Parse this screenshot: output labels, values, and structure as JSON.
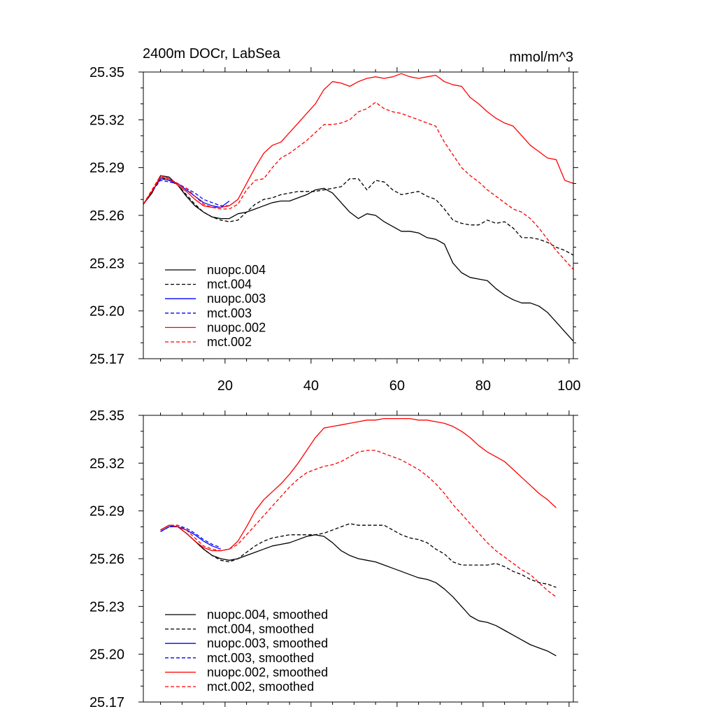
{
  "chart_data": [
    {
      "type": "line",
      "title": "2400m DOCr, LabSea",
      "units": "mmol/m^3",
      "xlim": [
        1,
        101
      ],
      "ylim": [
        25.17,
        25.35
      ],
      "xticks": [
        20,
        40,
        60,
        80,
        100
      ],
      "yticks": [
        "25.17",
        "25.20",
        "25.23",
        "25.26",
        "25.29",
        "25.32",
        "25.35"
      ],
      "legend_position": "lower-left",
      "series": [
        {
          "name": "nuopc.004",
          "color": "#000000",
          "dash": "solid",
          "x": [
            1,
            3,
            5,
            7,
            9,
            11,
            13,
            15,
            17,
            19,
            21,
            23,
            25,
            27,
            29,
            31,
            33,
            35,
            37,
            39,
            41,
            43,
            45,
            47,
            49,
            51,
            53,
            55,
            57,
            59,
            61,
            63,
            65,
            67,
            69,
            71,
            73,
            75,
            77,
            79,
            81,
            83,
            85,
            87,
            89,
            91,
            93,
            95,
            97,
            99,
            101
          ],
          "y": [
            25.267,
            25.274,
            25.285,
            25.284,
            25.279,
            25.272,
            25.266,
            25.262,
            25.259,
            25.258,
            25.258,
            25.261,
            25.262,
            25.264,
            25.266,
            25.268,
            25.269,
            25.269,
            25.271,
            25.273,
            25.276,
            25.277,
            25.274,
            25.268,
            25.262,
            25.258,
            25.261,
            25.26,
            25.256,
            25.253,
            25.25,
            25.25,
            25.249,
            25.246,
            25.245,
            25.242,
            25.23,
            25.224,
            25.221,
            25.22,
            25.219,
            25.214,
            25.21,
            25.207,
            25.205,
            25.205,
            25.203,
            25.199,
            25.193,
            25.187,
            25.181
          ]
        },
        {
          "name": "mct.004",
          "color": "#000000",
          "dash": "dashed",
          "x": [
            1,
            3,
            5,
            7,
            9,
            11,
            13,
            15,
            17,
            19,
            21,
            23,
            25,
            27,
            29,
            31,
            33,
            35,
            37,
            39,
            41,
            43,
            45,
            47,
            49,
            51,
            53,
            55,
            57,
            59,
            61,
            63,
            65,
            67,
            69,
            71,
            73,
            75,
            77,
            79,
            81,
            83,
            85,
            87,
            89,
            91,
            93,
            95,
            97,
            99,
            101
          ],
          "y": [
            25.267,
            25.274,
            25.284,
            25.282,
            25.279,
            25.273,
            25.267,
            25.262,
            25.259,
            25.257,
            25.256,
            25.257,
            25.262,
            25.267,
            25.27,
            25.271,
            25.273,
            25.274,
            25.275,
            25.275,
            25.275,
            25.276,
            25.277,
            25.278,
            25.283,
            25.283,
            25.276,
            25.282,
            25.281,
            25.276,
            25.273,
            25.274,
            25.275,
            25.272,
            25.27,
            25.264,
            25.257,
            25.255,
            25.254,
            25.254,
            25.257,
            25.255,
            25.256,
            25.252,
            25.246,
            25.246,
            25.245,
            25.243,
            25.24,
            25.238,
            25.235
          ]
        },
        {
          "name": "nuopc.003",
          "color": "#0000ff",
          "dash": "solid",
          "x": [
            1,
            3,
            5,
            7,
            9,
            11,
            13,
            15,
            17,
            19,
            21
          ],
          "y": [
            25.267,
            25.275,
            25.283,
            25.282,
            25.28,
            25.276,
            25.272,
            25.268,
            25.266,
            25.265,
            25.269
          ]
        },
        {
          "name": "mct.003",
          "color": "#0000ff",
          "dash": "dashed",
          "x": [
            1,
            3,
            5,
            7,
            9,
            11,
            13,
            15,
            17,
            19,
            21
          ],
          "y": [
            25.267,
            25.275,
            25.282,
            25.281,
            25.28,
            25.277,
            25.274,
            25.27,
            25.268,
            25.266,
            25.266
          ]
        },
        {
          "name": "nuopc.002",
          "color": "#ff0000",
          "dash": "solid",
          "x": [
            1,
            3,
            5,
            7,
            9,
            11,
            13,
            15,
            17,
            19,
            21,
            23,
            25,
            27,
            29,
            31,
            33,
            35,
            37,
            39,
            41,
            43,
            45,
            47,
            49,
            51,
            53,
            55,
            57,
            59,
            61,
            63,
            65,
            67,
            69,
            71,
            73,
            75,
            77,
            79,
            81,
            83,
            85,
            87,
            89,
            91,
            93,
            95,
            97,
            99,
            101
          ],
          "y": [
            25.267,
            25.275,
            25.284,
            25.283,
            25.279,
            25.275,
            25.27,
            25.266,
            25.265,
            25.265,
            25.266,
            25.27,
            25.28,
            25.29,
            25.299,
            25.304,
            25.306,
            25.312,
            25.318,
            25.324,
            25.33,
            25.339,
            25.344,
            25.343,
            25.341,
            25.344,
            25.346,
            25.347,
            25.346,
            25.347,
            25.349,
            25.347,
            25.346,
            25.347,
            25.348,
            25.344,
            25.342,
            25.341,
            25.334,
            25.33,
            25.325,
            25.321,
            25.318,
            25.316,
            25.31,
            25.304,
            25.3,
            25.296,
            25.295,
            25.282,
            25.28
          ]
        },
        {
          "name": "mct.002",
          "color": "#ff0000",
          "dash": "dashed",
          "x": [
            1,
            3,
            5,
            7,
            9,
            11,
            13,
            15,
            17,
            19,
            21,
            23,
            25,
            27,
            29,
            31,
            33,
            35,
            37,
            39,
            41,
            43,
            45,
            47,
            49,
            51,
            53,
            55,
            57,
            59,
            61,
            63,
            65,
            67,
            69,
            71,
            73,
            75,
            77,
            79,
            81,
            83,
            85,
            87,
            89,
            91,
            93,
            95,
            97,
            99,
            101
          ],
          "y": [
            25.267,
            25.276,
            25.285,
            25.283,
            25.28,
            25.277,
            25.272,
            25.267,
            25.265,
            25.264,
            25.264,
            25.267,
            25.276,
            25.282,
            25.283,
            25.29,
            25.296,
            25.299,
            25.303,
            25.307,
            25.312,
            25.317,
            25.317,
            25.318,
            25.32,
            25.325,
            25.327,
            25.331,
            25.327,
            25.325,
            25.324,
            25.322,
            25.32,
            25.318,
            25.316,
            25.306,
            25.298,
            25.29,
            25.285,
            25.281,
            25.276,
            25.272,
            25.268,
            25.264,
            25.262,
            25.258,
            25.252,
            25.245,
            25.238,
            25.232,
            25.226
          ]
        }
      ]
    },
    {
      "type": "line",
      "xlim": [
        1,
        101
      ],
      "ylim": [
        25.17,
        25.35
      ],
      "yticks": [
        "25.17",
        "25.20",
        "25.23",
        "25.26",
        "25.29",
        "25.32",
        "25.35"
      ],
      "legend_position": "lower-left",
      "series": [
        {
          "name": "nuopc.004, smoothed",
          "color": "#000000",
          "dash": "solid",
          "x": [
            5,
            7,
            9,
            11,
            13,
            15,
            17,
            19,
            21,
            23,
            25,
            27,
            29,
            31,
            33,
            35,
            37,
            39,
            41,
            43,
            45,
            47,
            49,
            51,
            53,
            55,
            57,
            59,
            61,
            63,
            65,
            67,
            69,
            71,
            73,
            75,
            77,
            79,
            81,
            83,
            85,
            87,
            89,
            91,
            93,
            95,
            97
          ],
          "y": [
            25.278,
            25.281,
            25.28,
            25.276,
            25.271,
            25.266,
            25.262,
            25.26,
            25.259,
            25.26,
            25.262,
            25.264,
            25.266,
            25.268,
            25.269,
            25.27,
            25.272,
            25.274,
            25.275,
            25.274,
            25.27,
            25.265,
            25.262,
            25.26,
            25.259,
            25.258,
            25.256,
            25.254,
            25.252,
            25.25,
            25.248,
            25.247,
            25.245,
            25.241,
            25.236,
            25.23,
            25.224,
            25.221,
            25.22,
            25.218,
            25.215,
            25.212,
            25.209,
            25.206,
            25.204,
            25.202,
            25.199
          ]
        },
        {
          "name": "mct.004, smoothed",
          "color": "#000000",
          "dash": "dashed",
          "x": [
            5,
            7,
            9,
            11,
            13,
            15,
            17,
            19,
            21,
            23,
            25,
            27,
            29,
            31,
            33,
            35,
            37,
            39,
            41,
            43,
            45,
            47,
            49,
            51,
            53,
            55,
            57,
            59,
            61,
            63,
            65,
            67,
            69,
            71,
            73,
            75,
            77,
            79,
            81,
            83,
            85,
            87,
            89,
            91,
            93,
            95,
            97
          ],
          "y": [
            25.278,
            25.281,
            25.28,
            25.276,
            25.271,
            25.266,
            25.262,
            25.259,
            25.258,
            25.26,
            25.264,
            25.268,
            25.271,
            25.273,
            25.274,
            25.275,
            25.275,
            25.275,
            25.275,
            25.276,
            25.278,
            25.28,
            25.282,
            25.281,
            25.281,
            25.281,
            25.281,
            25.278,
            25.275,
            25.273,
            25.272,
            25.27,
            25.266,
            25.263,
            25.258,
            25.256,
            25.256,
            25.256,
            25.256,
            25.257,
            25.255,
            25.252,
            25.25,
            25.247,
            25.245,
            25.244,
            25.242
          ]
        },
        {
          "name": "nuopc.003, smoothed",
          "color": "#0000ff",
          "dash": "solid",
          "x": [
            5,
            7,
            9,
            11,
            13,
            15,
            17,
            19
          ],
          "y": [
            25.277,
            25.28,
            25.28,
            25.278,
            25.275,
            25.271,
            25.268,
            25.266
          ]
        },
        {
          "name": "mct.003, smoothed",
          "color": "#0000ff",
          "dash": "dashed",
          "x": [
            5,
            7,
            9,
            11,
            13,
            15,
            17,
            19
          ],
          "y": [
            25.277,
            25.28,
            25.281,
            25.279,
            25.276,
            25.272,
            25.269,
            25.267
          ]
        },
        {
          "name": "nuopc.002, smoothed",
          "color": "#ff0000",
          "dash": "solid",
          "x": [
            5,
            7,
            9,
            11,
            13,
            15,
            17,
            19,
            21,
            23,
            25,
            27,
            29,
            31,
            33,
            35,
            37,
            39,
            41,
            43,
            45,
            47,
            49,
            51,
            53,
            55,
            57,
            59,
            61,
            63,
            65,
            67,
            69,
            71,
            73,
            75,
            77,
            79,
            81,
            83,
            85,
            87,
            89,
            91,
            93,
            95,
            97
          ],
          "y": [
            25.278,
            25.281,
            25.28,
            25.276,
            25.271,
            25.267,
            25.265,
            25.265,
            25.266,
            25.271,
            25.28,
            25.29,
            25.297,
            25.302,
            25.307,
            25.313,
            25.32,
            25.328,
            25.336,
            25.342,
            25.343,
            25.344,
            25.345,
            25.346,
            25.347,
            25.347,
            25.348,
            25.348,
            25.348,
            25.348,
            25.347,
            25.347,
            25.346,
            25.345,
            25.343,
            25.34,
            25.336,
            25.331,
            25.327,
            25.324,
            25.321,
            25.316,
            25.311,
            25.306,
            25.301,
            25.297,
            25.292
          ]
        },
        {
          "name": "mct.002, smoothed",
          "color": "#ff0000",
          "dash": "dashed",
          "x": [
            5,
            7,
            9,
            11,
            13,
            15,
            17,
            19,
            21,
            23,
            25,
            27,
            29,
            31,
            33,
            35,
            37,
            39,
            41,
            43,
            45,
            47,
            49,
            51,
            53,
            55,
            57,
            59,
            61,
            63,
            65,
            67,
            69,
            71,
            73,
            75,
            77,
            79,
            81,
            83,
            85,
            87,
            89,
            91,
            93,
            95,
            97
          ],
          "y": [
            25.278,
            25.281,
            25.281,
            25.278,
            25.273,
            25.268,
            25.266,
            25.265,
            25.266,
            25.269,
            25.275,
            25.281,
            25.287,
            25.293,
            25.299,
            25.305,
            25.31,
            25.314,
            25.316,
            25.318,
            25.319,
            25.321,
            25.324,
            25.327,
            25.328,
            25.328,
            25.326,
            25.324,
            25.322,
            25.319,
            25.316,
            25.312,
            25.307,
            25.301,
            25.294,
            25.288,
            25.282,
            25.276,
            25.27,
            25.265,
            25.261,
            25.257,
            25.253,
            25.25,
            25.245,
            25.24,
            25.236
          ]
        }
      ]
    }
  ]
}
